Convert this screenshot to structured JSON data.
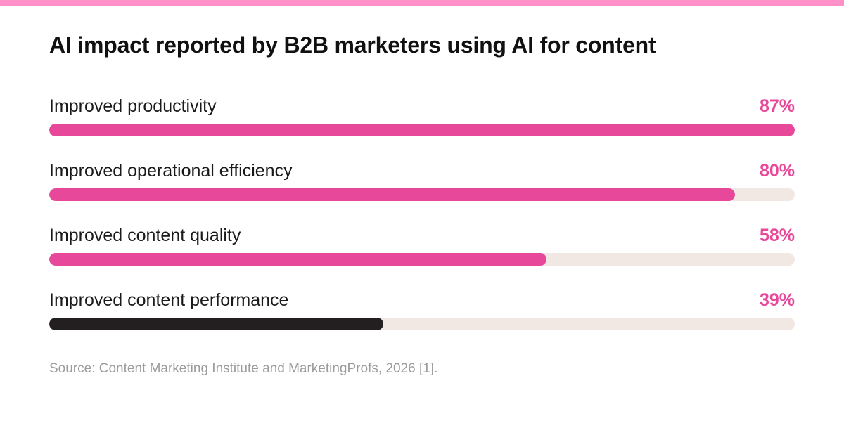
{
  "colors": {
    "stripe": "#ff90c8",
    "accent": "#e8489a",
    "track": "#f1e8e3",
    "highlight_bar": "#231f20"
  },
  "chart_data": {
    "type": "bar",
    "orientation": "horizontal",
    "title": "AI impact reported by B2B marketers using AI for content",
    "categories": [
      "Improved productivity",
      "Improved operational efficiency",
      "Improved content quality",
      "Improved content performance"
    ],
    "values": [
      87,
      80,
      58,
      39
    ],
    "value_labels": [
      "87%",
      "80%",
      "58%",
      "39%"
    ],
    "bar_colors": [
      "#e8489a",
      "#e8489a",
      "#e8489a",
      "#231f20"
    ],
    "xlim": [
      0,
      87
    ],
    "grid": false,
    "source": "Source: Content Marketing Institute and MarketingProfs, 2026 [1]."
  }
}
